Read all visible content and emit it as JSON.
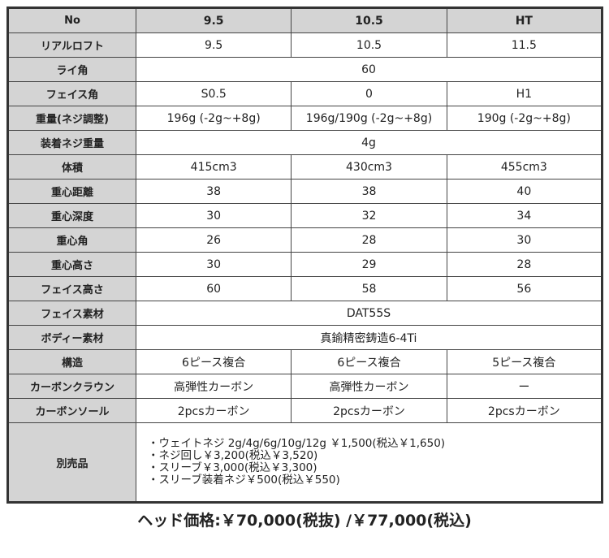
{
  "header": [
    "No",
    "9.5",
    "10.5",
    "HT"
  ],
  "rows": [
    {
      "label": "リアルロフト",
      "values": [
        "9.5",
        "10.5",
        "11.5"
      ]
    },
    {
      "label": "ライ角",
      "merged": "60"
    },
    {
      "label": "フェイス角",
      "values": [
        "S0.5",
        "0",
        "H1"
      ]
    },
    {
      "label": "重量(ネジ調整)",
      "values": [
        "196g (-2g~+8g)",
        "196g/190g (-2g~+8g)",
        "190g (-2g~+8g)"
      ]
    },
    {
      "label": "装着ネジ重量",
      "merged": "4g"
    },
    {
      "label": "体積",
      "values": [
        "415cm3",
        "430cm3",
        "455cm3"
      ]
    },
    {
      "label": "重心距離",
      "values": [
        "38",
        "38",
        "40"
      ]
    },
    {
      "label": "重心深度",
      "values": [
        "30",
        "32",
        "34"
      ]
    },
    {
      "label": "重心角",
      "values": [
        "26",
        "28",
        "30"
      ]
    },
    {
      "label": "重心高さ",
      "values": [
        "30",
        "29",
        "28"
      ]
    },
    {
      "label": "フェイス高さ",
      "values": [
        "60",
        "58",
        "56"
      ]
    },
    {
      "label": "フェイス素材",
      "merged": "DAT55S"
    },
    {
      "label": "ボディー素材",
      "merged": "真鍮精密鋳造6-4Ti"
    },
    {
      "label": "構造",
      "values": [
        "6ピース複合",
        "6ピース複合",
        "5ピース複合"
      ]
    },
    {
      "label": "カーボンクラウン",
      "values": [
        "高弾性カーボン",
        "高弾性カーボン",
        "ー"
      ]
    },
    {
      "label": "カーボンソール",
      "values": [
        "2pcsカーボン",
        "2pcsカーボン",
        "2pcsカーボン"
      ]
    }
  ],
  "accessories": {
    "label": "別売品",
    "items": [
      "・ウェイトネジ  2g/4g/6g/10g/12g ￥1,500(税込￥1,650)",
      "・ネジ回し￥3,200(税込￥3,520)",
      "・スリーブ￥3,000(税込￥3,300)",
      "・スリーブ装着ネジ￥500(税込￥550)"
    ]
  },
  "price": "ヘッド価格:￥70,000(税抜) /￥77,000(税込)"
}
